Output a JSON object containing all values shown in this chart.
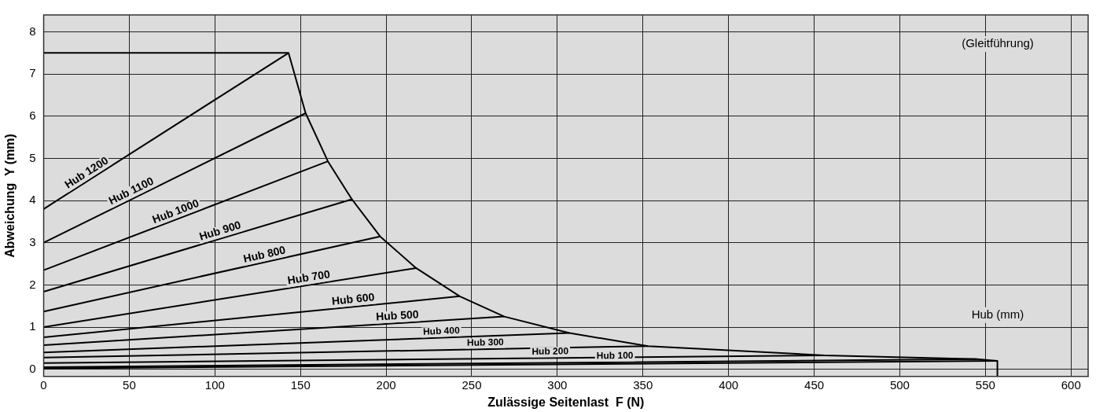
{
  "chart_data": {
    "type": "line",
    "xlabel": "Zulässige Seitenlast  F (N)",
    "ylabel": "Abweichung  Y (mm)",
    "xlim": [
      0,
      610
    ],
    "ylim": [
      -0.17,
      8.4
    ],
    "xticks": [
      0,
      50,
      100,
      150,
      200,
      250,
      300,
      350,
      400,
      450,
      500,
      550,
      600
    ],
    "yticks": [
      0,
      1,
      2,
      3,
      4,
      5,
      6,
      7,
      8
    ],
    "grid": true,
    "legend": false,
    "marker": "none",
    "line_style": "solid",
    "annotations": [
      "(Gleitführung)",
      "Hub (mm)"
    ],
    "series": [
      {
        "name": "Hub 1200",
        "color": "#000000",
        "x": [
          0,
          143
        ],
        "values": [
          3.8,
          7.5
        ]
      },
      {
        "name": "Hub 1100",
        "color": "#000000",
        "x": [
          0,
          153
        ],
        "values": [
          3.0,
          6.07
        ]
      },
      {
        "name": "Hub 1000",
        "color": "#000000",
        "x": [
          0,
          166
        ],
        "values": [
          2.35,
          4.93
        ]
      },
      {
        "name": "Hub 900",
        "color": "#000000",
        "x": [
          0,
          180
        ],
        "values": [
          1.84,
          4.03
        ]
      },
      {
        "name": "Hub 800",
        "color": "#000000",
        "x": [
          0,
          196.5
        ],
        "values": [
          1.37,
          3.15
        ]
      },
      {
        "name": "Hub 700",
        "color": "#000000",
        "x": [
          0,
          217.5
        ],
        "values": [
          1.0,
          2.4
        ]
      },
      {
        "name": "Hub 600",
        "color": "#000000",
        "x": [
          0,
          243
        ],
        "values": [
          0.76,
          1.73
        ]
      },
      {
        "name": "Hub 500",
        "color": "#000000",
        "x": [
          0,
          269
        ],
        "values": [
          0.57,
          1.25
        ]
      },
      {
        "name": "Hub 400",
        "color": "#000000",
        "x": [
          0,
          307
        ],
        "values": [
          0.4,
          0.86
        ]
      },
      {
        "name": "Hub 300",
        "color": "#000000",
        "x": [
          0,
          353
        ],
        "values": [
          0.28,
          0.55
        ]
      },
      {
        "name": "Hub 200",
        "color": "#000000",
        "x": [
          0,
          456
        ],
        "values": [
          0.15,
          0.33
        ]
      },
      {
        "name": "Hub 100",
        "color": "#000000",
        "x": [
          0,
          545
        ],
        "values": [
          0.05,
          0.24
        ]
      },
      {
        "color": "#000000",
        "x": [
          0,
          557
        ],
        "values": [
          0.02,
          0.2
        ]
      },
      {
        "color": "#000000",
        "x": [
          0,
          143,
          153,
          166,
          180,
          196.5,
          217.5,
          243,
          269,
          307,
          353,
          456,
          545,
          557,
          557
        ],
        "values": [
          7.5,
          7.5,
          6.07,
          4.93,
          4.03,
          3.15,
          2.4,
          1.73,
          1.25,
          0.86,
          0.55,
          0.33,
          0.24,
          0.2,
          -0.17
        ]
      }
    ]
  }
}
